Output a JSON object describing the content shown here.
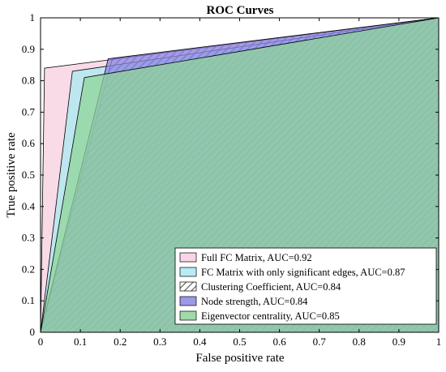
{
  "chart_data": {
    "type": "area",
    "title": "ROC Curves",
    "xlabel": "False positive rate",
    "ylabel": "True positive rate",
    "xlim": [
      0,
      1
    ],
    "ylim": [
      0,
      1
    ],
    "xticks": [
      "0",
      "0.1",
      "0.2",
      "0.3",
      "0.4",
      "0.5",
      "0.6",
      "0.7",
      "0.8",
      "0.9",
      "1"
    ],
    "yticks": [
      "0",
      "0.1",
      "0.2",
      "0.3",
      "0.4",
      "0.5",
      "0.6",
      "0.7",
      "0.8",
      "0.9",
      "1"
    ],
    "grid": false,
    "legend_position": "bottom-right",
    "series": [
      {
        "name": "Full FC Matrix, AUC=0.92",
        "fill": "#f7cfe0",
        "pattern": "solid",
        "x": [
          0,
          0.01,
          1
        ],
        "y": [
          0,
          0.84,
          1
        ]
      },
      {
        "name": "FC Matrix with only significant edges, AUC=0.87",
        "fill": "#a9e9f2",
        "pattern": "solid",
        "x": [
          0,
          0.08,
          1
        ],
        "y": [
          0,
          0.83,
          1
        ]
      },
      {
        "name": "Clustering Coefficient, AUC=0.84",
        "fill": "#d0d0d0",
        "pattern": "hatched",
        "x": [
          0,
          0.18,
          1
        ],
        "y": [
          0,
          0.87,
          1
        ]
      },
      {
        "name": "Node strength, AUC=0.84",
        "fill": "#8b86e6",
        "pattern": "solid",
        "x": [
          0,
          0.17,
          1
        ],
        "y": [
          0,
          0.87,
          1
        ]
      },
      {
        "name": "Eigenvector centrality, AUC=0.85",
        "fill": "#8fd49a",
        "pattern": "solid",
        "x": [
          0,
          0.11,
          1
        ],
        "y": [
          0,
          0.81,
          1
        ]
      }
    ]
  }
}
